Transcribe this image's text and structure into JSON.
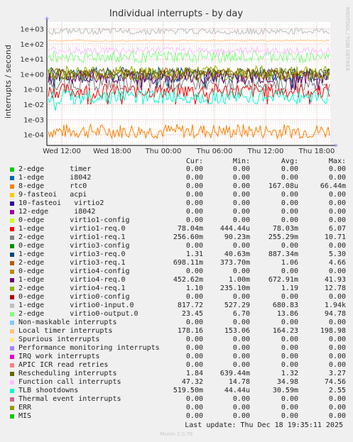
{
  "chart_data": {
    "type": "line",
    "title": "Individual interrupts - by day",
    "ylabel": "interrupts / second",
    "yscale": "log",
    "yticks": [
      "1e+03",
      "1e+02",
      "1e+01",
      "1e+00",
      "1e-01",
      "1e-02",
      "1e-03",
      "1e-04"
    ],
    "xticks": [
      "Wed 12:00",
      "Wed 18:00",
      "Thu 00:00",
      "Thu 06:00",
      "Thu 12:00",
      "Thu 18:00"
    ],
    "side_label": "RRDTOOL / TOBI OETIKER",
    "grid": true,
    "columns": [
      "Cur:",
      "Min:",
      "Avg:",
      "Max:"
    ],
    "series": [
      {
        "name": "2-edge      timer",
        "color": "#00cc00",
        "cur": "0.00",
        "min": "0.00",
        "avg": "0.00",
        "max": "0.00"
      },
      {
        "name": "1-edge      i8042",
        "color": "#0066b3",
        "cur": "0.00",
        "min": "0.00",
        "avg": "0.00",
        "max": "0.00"
      },
      {
        "name": "8-edge      rtc0",
        "color": "#ff8000",
        "cur": "0.00",
        "min": "0.00",
        "avg": "167.08u",
        "max": "66.44m"
      },
      {
        "name": "9-fasteoi   acpi",
        "color": "#ffcc00",
        "cur": "0.00",
        "min": "0.00",
        "avg": "0.00",
        "max": "0.00"
      },
      {
        "name": "10-fasteoi   virtio2",
        "color": "#330099",
        "cur": "0.00",
        "min": "0.00",
        "avg": "0.00",
        "max": "0.00"
      },
      {
        "name": "12-edge      i8042",
        "color": "#990099",
        "cur": "0.00",
        "min": "0.00",
        "avg": "0.00",
        "max": "0.00"
      },
      {
        "name": "0-edge      virtio1-config",
        "color": "#ccff00",
        "cur": "0.00",
        "min": "0.00",
        "avg": "0.00",
        "max": "0.00"
      },
      {
        "name": "1-edge      virtio1-req.0",
        "color": "#ff0000",
        "cur": "78.04m",
        "min": "444.44u",
        "avg": "78.03m",
        "max": "6.07"
      },
      {
        "name": "2-edge      virtio1-req.1",
        "color": "#808080",
        "cur": "256.60m",
        "min": "90.23m",
        "avg": "255.29m",
        "max": "10.71"
      },
      {
        "name": "0-edge      virtio3-config",
        "color": "#008f00",
        "cur": "0.00",
        "min": "0.00",
        "avg": "0.00",
        "max": "0.00"
      },
      {
        "name": "1-edge      virtio3-req.0",
        "color": "#00487d",
        "cur": "1.31",
        "min": "40.63m",
        "avg": "887.34m",
        "max": "5.30"
      },
      {
        "name": "2-edge      virtio3-req.1",
        "color": "#b35a00",
        "cur": "698.11m",
        "min": "373.70m",
        "avg": "1.06",
        "max": "4.66"
      },
      {
        "name": "0-edge      virtio4-config",
        "color": "#b38f00",
        "cur": "0.00",
        "min": "0.00",
        "avg": "0.00",
        "max": "0.00"
      },
      {
        "name": "1-edge      virtio4-req.0",
        "color": "#6b006b",
        "cur": "452.62m",
        "min": "1.00m",
        "avg": "672.91m",
        "max": "41.93"
      },
      {
        "name": "2-edge      virtio4-req.1",
        "color": "#8fb300",
        "cur": "1.10",
        "min": "235.10m",
        "avg": "1.19",
        "max": "12.78"
      },
      {
        "name": "0-edge      virtio0-config",
        "color": "#b30000",
        "cur": "0.00",
        "min": "0.00",
        "avg": "0.00",
        "max": "0.00"
      },
      {
        "name": "1-edge      virtio0-input.0",
        "color": "#bebebe",
        "cur": "817.72",
        "min": "527.29",
        "avg": "680.83",
        "max": "1.94k"
      },
      {
        "name": "2-edge      virtio0-output.0",
        "color": "#80ff80",
        "cur": "23.45",
        "min": "6.70",
        "avg": "13.86",
        "max": "94.78"
      },
      {
        "name": "Non-maskable interrupts",
        "color": "#80c9ff",
        "cur": "0.00",
        "min": "0.00",
        "avg": "0.00",
        "max": "0.00"
      },
      {
        "name": "Local timer interrupts",
        "color": "#ffc080",
        "cur": "178.16",
        "min": "153.06",
        "avg": "164.23",
        "max": "198.98"
      },
      {
        "name": "Spurious interrupts",
        "color": "#ffe680",
        "cur": "0.00",
        "min": "0.00",
        "avg": "0.00",
        "max": "0.00"
      },
      {
        "name": "Performance monitoring interrupts",
        "color": "#aa80ff",
        "cur": "0.00",
        "min": "0.00",
        "avg": "0.00",
        "max": "0.00"
      },
      {
        "name": "IRQ work interrupts",
        "color": "#ee00cc",
        "cur": "0.00",
        "min": "0.00",
        "avg": "0.00",
        "max": "0.00"
      },
      {
        "name": "APIC ICR read retries",
        "color": "#ff8080",
        "cur": "0.00",
        "min": "0.00",
        "avg": "0.00",
        "max": "0.00"
      },
      {
        "name": "Rescheduling interrupts",
        "color": "#666600",
        "cur": "1.84",
        "min": "639.44m",
        "avg": "1.32",
        "max": "3.27"
      },
      {
        "name": "Function call interrupts",
        "color": "#ffbfff",
        "cur": "47.32",
        "min": "14.78",
        "avg": "34.98",
        "max": "74.56"
      },
      {
        "name": "TLB shootdowns",
        "color": "#00ffcc",
        "cur": "519.50m",
        "min": "44.44u",
        "avg": "30.59m",
        "max": "2.55"
      },
      {
        "name": "Thermal event interrupts",
        "color": "#cc6699",
        "cur": "0.00",
        "min": "0.00",
        "avg": "0.00",
        "max": "0.00"
      },
      {
        "name": "ERR",
        "color": "#999900",
        "cur": "0.00",
        "min": "0.00",
        "avg": "0.00",
        "max": "0.00"
      },
      {
        "name": "MIS",
        "color": "#00cc00",
        "cur": "0.00",
        "min": "0.00",
        "avg": "0.00",
        "max": "0.00"
      }
    ]
  },
  "footer": {
    "last_update": "Last update: Thu Dec 18 19:35:11 2025",
    "munin": "Munin 2.0.76"
  }
}
